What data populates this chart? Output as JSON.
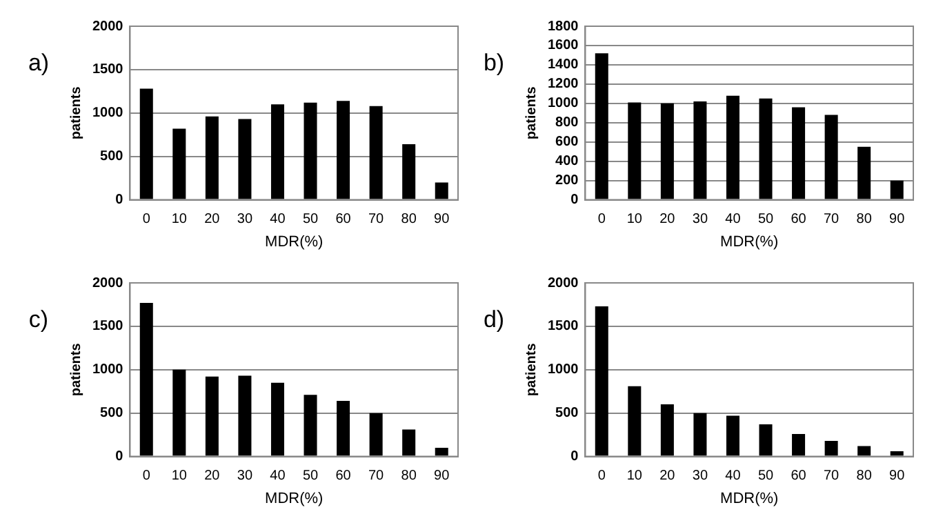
{
  "chart_data": [
    {
      "type": "bar",
      "title": "a)",
      "xlabel": "MDR(%)",
      "ylabel": "patients",
      "categories": [
        "0",
        "10",
        "20",
        "30",
        "40",
        "50",
        "60",
        "70",
        "80",
        "90"
      ],
      "values": [
        1280,
        820,
        960,
        930,
        1100,
        1120,
        1140,
        1080,
        640,
        200
      ],
      "color": "#000000",
      "ylim": [
        0,
        2000
      ],
      "yticks": [
        0,
        500,
        1000,
        1500,
        2000
      ],
      "grid": "y",
      "legend": false
    },
    {
      "type": "bar",
      "title": "b)",
      "xlabel": "MDR(%)",
      "ylabel": "patients",
      "categories": [
        "0",
        "10",
        "20",
        "30",
        "40",
        "50",
        "60",
        "70",
        "80",
        "90"
      ],
      "values": [
        1520,
        1010,
        1000,
        1020,
        1080,
        1050,
        960,
        880,
        550,
        200
      ],
      "color": "#000000",
      "ylim": [
        0,
        1800
      ],
      "yticks": [
        0,
        200,
        400,
        600,
        800,
        1000,
        1200,
        1400,
        1600,
        1800
      ],
      "grid": "y",
      "legend": false
    },
    {
      "type": "bar",
      "title": "c)",
      "xlabel": "MDR(%)",
      "ylabel": "patients",
      "categories": [
        "0",
        "10",
        "20",
        "30",
        "40",
        "50",
        "60",
        "70",
        "80",
        "90"
      ],
      "values": [
        1770,
        1000,
        920,
        930,
        850,
        710,
        640,
        500,
        310,
        100
      ],
      "color": "#000000",
      "ylim": [
        0,
        2000
      ],
      "yticks": [
        0,
        500,
        1000,
        1500,
        2000
      ],
      "grid": "y",
      "legend": false
    },
    {
      "type": "bar",
      "title": "d)",
      "xlabel": "MDR(%)",
      "ylabel": "patients",
      "categories": [
        "0",
        "10",
        "20",
        "30",
        "40",
        "50",
        "60",
        "70",
        "80",
        "90"
      ],
      "values": [
        1730,
        810,
        600,
        500,
        470,
        370,
        260,
        180,
        120,
        60
      ],
      "color": "#000000",
      "ylim": [
        0,
        2000
      ],
      "yticks": [
        0,
        500,
        1000,
        1500,
        2000
      ],
      "grid": "y",
      "legend": false
    }
  ]
}
